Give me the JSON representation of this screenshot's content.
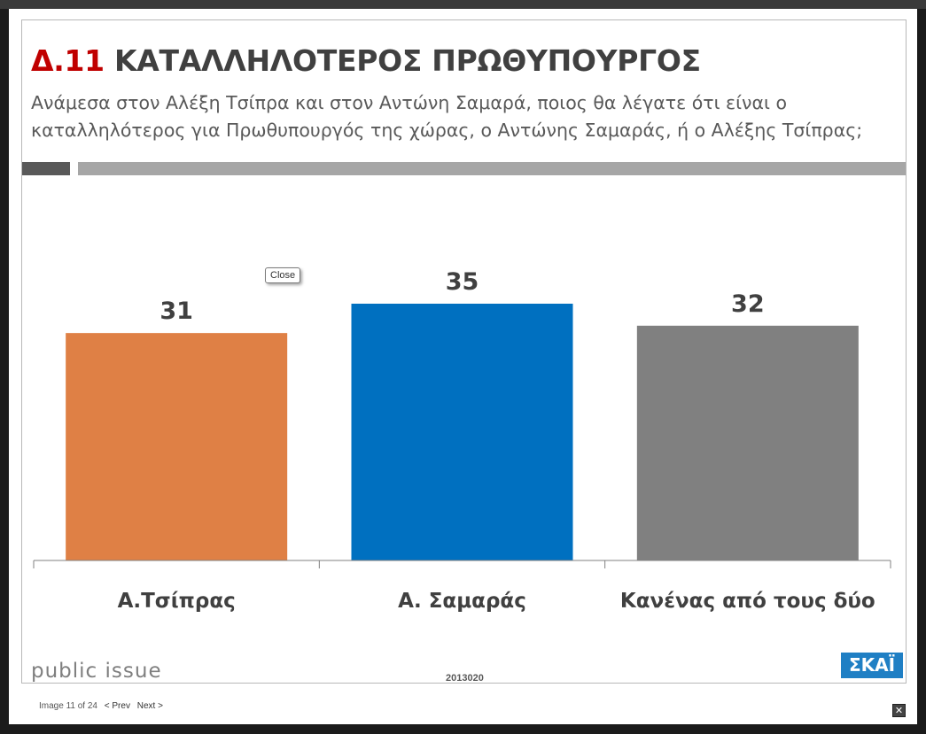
{
  "slide": {
    "title_code": "Δ.11",
    "title_text": "ΚΑΤΑΛΛΗΛΟΤΕΡΟΣ ΠΡΩΘΥΠΟΥΡΓΟΣ",
    "subtitle": "Ανάμεσα στον Αλέξη Τσίπρα και στον Αντώνη Σαμαρά, ποιος θα λέγατε ότι είναι ο καταλληλότερος για Πρωθυπουργός της χώρας, ο Αντώνης Σαμαράς, ή ο Αλέξης Τσίπρας;",
    "brand": "public issue",
    "code": "2013020",
    "tv_logo": "ΣΚΑΪ"
  },
  "chart_data": {
    "type": "bar",
    "categories": [
      "Α.Τσίπρας",
      "Α. Σαμαράς",
      "Κανένας από τους δύο"
    ],
    "values": [
      31,
      35,
      32
    ],
    "colors": [
      "#df8045",
      "#0070c0",
      "#808080"
    ],
    "ylim": [
      0,
      35
    ],
    "grid": false,
    "legend": "none"
  },
  "tooltip": {
    "close_label": "Close"
  },
  "footer": {
    "counter": "Image 11 of 24",
    "prev_label": "< Prev",
    "next_label": "Next >"
  },
  "icons": {
    "close": "close-icon"
  }
}
